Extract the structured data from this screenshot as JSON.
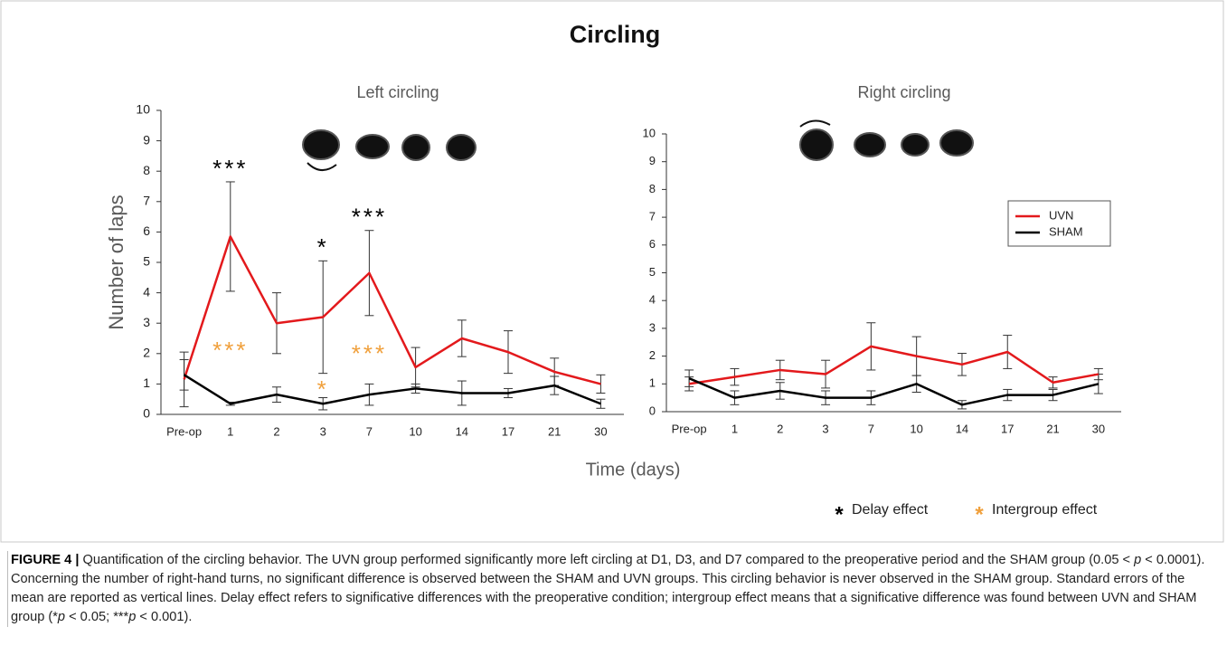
{
  "chart_data": [
    {
      "type": "line",
      "title": "Left circling",
      "categories": [
        "Pre-op",
        "1",
        "2",
        "3",
        "7",
        "10",
        "14",
        "17",
        "21",
        "30"
      ],
      "ylim": [
        0,
        10
      ],
      "yticks": [
        0,
        1,
        2,
        3,
        4,
        5,
        6,
        7,
        8,
        9,
        10
      ],
      "series": [
        {
          "color": "#e3191c",
          "values": [
            1.15,
            5.85,
            3.0,
            3.2,
            4.65,
            1.55,
            2.5,
            2.05,
            1.4,
            1.0
          ],
          "errors": [
            0.9,
            1.8,
            1.0,
            1.85,
            1.4,
            0.65,
            0.6,
            0.7,
            0.45,
            0.3
          ]
        },
        {
          "color": "#000000",
          "values": [
            1.3,
            0.35,
            0.65,
            0.35,
            0.65,
            0.85,
            0.7,
            0.7,
            0.95,
            0.35
          ],
          "errors": [
            0.5,
            0.05,
            0.25,
            0.2,
            0.35,
            0.15,
            0.4,
            0.15,
            0.3,
            0.15
          ]
        }
      ],
      "annotations": [
        {
          "text": "***",
          "category": "1",
          "effect": 0,
          "placement": "above"
        },
        {
          "text": "*",
          "category": "3",
          "effect": 0,
          "placement": "above"
        },
        {
          "text": "***",
          "category": "7",
          "effect": 0,
          "placement": "above"
        },
        {
          "text": "***",
          "category": "1",
          "effect": 1,
          "placement": "between"
        },
        {
          "text": "*",
          "category": "3",
          "effect": 1,
          "placement": "between"
        },
        {
          "text": "***",
          "category": "7",
          "effect": 1,
          "placement": "between"
        }
      ]
    },
    {
      "type": "line",
      "title": "Right circling",
      "categories": [
        "Pre-op",
        "1",
        "2",
        "3",
        "7",
        "10",
        "14",
        "17",
        "21",
        "30"
      ],
      "ylim": [
        0,
        10
      ],
      "yticks": [
        0,
        1,
        2,
        3,
        4,
        5,
        6,
        7,
        8,
        9,
        10
      ],
      "legend": "upper right",
      "series": [
        {
          "name": "UVN",
          "color": "#e3191c",
          "values": [
            1.0,
            1.25,
            1.5,
            1.35,
            2.35,
            2.0,
            1.7,
            2.15,
            1.05,
            1.35
          ],
          "errors": [
            0.25,
            0.3,
            0.35,
            0.5,
            0.85,
            0.7,
            0.4,
            0.6,
            0.2,
            0.2
          ]
        },
        {
          "name": "SHAM",
          "color": "#000000",
          "values": [
            1.2,
            0.5,
            0.75,
            0.5,
            0.5,
            1.0,
            0.25,
            0.6,
            0.6,
            1.0
          ],
          "errors": [
            0.3,
            0.25,
            0.3,
            0.25,
            0.25,
            0.3,
            0.15,
            0.2,
            0.2,
            0.35
          ]
        }
      ]
    }
  ],
  "figure": {
    "title": "Circling",
    "y_label": "Number of laps",
    "x_label": "Time (days)",
    "effects": [
      {
        "symbol": "*",
        "label": "Delay effect",
        "color": "#000000"
      },
      {
        "symbol": "*",
        "label": "Intergroup effect",
        "color": "#f0a03c"
      }
    ],
    "caption": {
      "label": "FIGURE 4 |",
      "parts": [
        {
          "text": " Quantification of the circling behavior. The UVN group performed significantly more left circling at D1, D3, and D7 compared to the preoperative period and the SHAM group (0.05 < "
        },
        {
          "text": "p",
          "italic": true
        },
        {
          "text": " < 0.0001). Concerning the number of right-hand turns, no significant difference is observed between the SHAM and UVN groups. This circling behavior is never observed in the SHAM group. Standard errors of the mean are reported as vertical lines. Delay effect refers to significative differences with the preoperative condition; intergroup effect means that a significative difference was found between UVN and SHAM group (*"
        },
        {
          "text": "p",
          "italic": true
        },
        {
          "text": " < 0.05; ***"
        },
        {
          "text": "p",
          "italic": true
        },
        {
          "text": " < 0.001)."
        }
      ]
    }
  }
}
